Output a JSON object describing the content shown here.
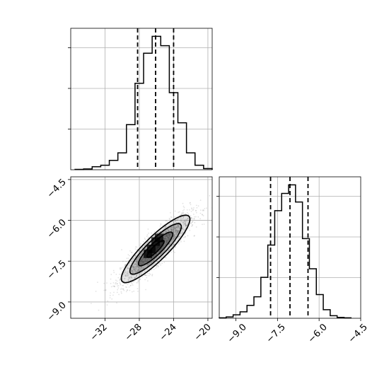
{
  "colors": {
    "line": "#000000",
    "grid": "#b0b0b0",
    "density": "#000000",
    "background": "#ffffff"
  },
  "chart_data": [
    {
      "panel": "marginal-histogram-param-1",
      "type": "histogram",
      "x_range": [
        -36,
        -19.5
      ],
      "bin_edges": [
        -35.5,
        -34.5,
        -33.5,
        -32.5,
        -31.5,
        -30.5,
        -29.5,
        -28.5,
        -27.5,
        -26.5,
        -25.5,
        -24.5,
        -23.5,
        -22.5,
        -21.5,
        -20.5,
        -19.5
      ],
      "counts": [
        1,
        2,
        8,
        12,
        25,
        45,
        120,
        230,
        310,
        355,
        330,
        205,
        125,
        45,
        12,
        3
      ],
      "quantiles": [
        -28.2,
        -26.1,
        -24.0
      ],
      "grid": true,
      "y_ticks_labeled": false
    },
    {
      "panel": "marginal-histogram-param-2",
      "type": "histogram",
      "x_range": [
        -9.6,
        -4.5
      ],
      "bin_edges": [
        -9.6,
        -9.35,
        -9.1,
        -8.85,
        -8.6,
        -8.35,
        -8.1,
        -7.85,
        -7.6,
        -7.35,
        -7.1,
        -6.85,
        -6.6,
        -6.35,
        -6.1,
        -5.85,
        -5.6,
        -5.35,
        -5.1,
        -4.85
      ],
      "counts": [
        1,
        3,
        8,
        15,
        30,
        50,
        95,
        170,
        250,
        290,
        310,
        270,
        185,
        115,
        55,
        20,
        6,
        2,
        1
      ],
      "quantiles": [
        -7.75,
        -7.05,
        -6.4
      ],
      "grid": true,
      "y_ticks_labeled": false
    },
    {
      "panel": "joint-distribution",
      "type": "scatter-density-contour",
      "x_range": [
        -36,
        -19.5
      ],
      "y_range": [
        -9.6,
        -4.4
      ],
      "x_ticks": [
        -32,
        -28,
        -24,
        -20
      ],
      "y_ticks": [
        -9.0,
        -7.5,
        -6.0,
        -4.5
      ],
      "mean": [
        -26.1,
        -7.05
      ],
      "std": [
        2.0,
        0.62
      ],
      "correlation": 0.88,
      "contour_levels_sigma": [
        0.5,
        1.0,
        1.5,
        2.0
      ],
      "grid": true
    }
  ],
  "axes": {
    "x1_tick_labels": [
      "−32",
      "−28",
      "−24",
      "−20"
    ],
    "y_joint_tick_labels": [
      "−9.0",
      "−7.5",
      "−6.0",
      "−4.5"
    ],
    "x2_tick_labels": [
      "−9.0",
      "−7.5",
      "−6.0",
      "−4.5"
    ]
  }
}
